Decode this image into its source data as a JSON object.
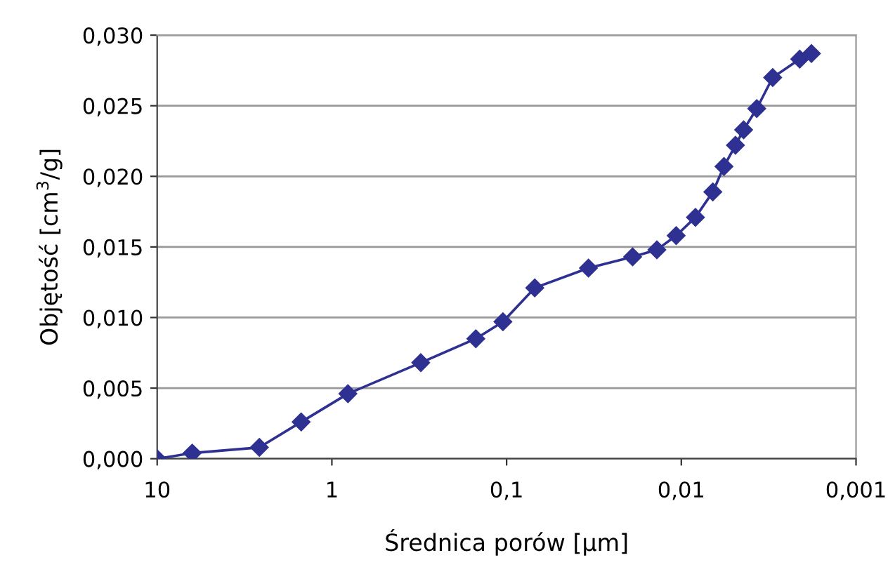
{
  "chart_data": {
    "type": "line",
    "xlabel": "Średnica porów [µm]",
    "ylabel": "Objętość [cm$^{3}$/g]",
    "log": "x",
    "xlim": [
      10,
      0.001
    ],
    "xticks": [
      {
        "value": 10,
        "label": "10"
      },
      {
        "value": 1,
        "label": "1"
      },
      {
        "value": 0.1,
        "label": "0,1"
      },
      {
        "value": 0.01,
        "label": "0,01"
      },
      {
        "value": 0.001,
        "label": "0,001"
      }
    ],
    "ylim": [
      0,
      0.03
    ],
    "yticks": [
      {
        "value": 0,
        "label": "0,000"
      },
      {
        "value": 0.005,
        "label": "0,005"
      },
      {
        "value": 0.01,
        "label": "0,010"
      },
      {
        "value": 0.015,
        "label": "0,015"
      },
      {
        "value": 0.02,
        "label": "0,020"
      },
      {
        "value": 0.025,
        "label": "0,025"
      },
      {
        "value": 0.03,
        "label": "0,030"
      }
    ],
    "grid": "y",
    "marker": "diamond",
    "line_style": "solid",
    "series": [
      {
        "color": "#2e3192",
        "x": [
          10,
          6.3,
          2.6,
          1.5,
          0.81,
          0.31,
          0.15,
          0.105,
          0.069,
          0.034,
          0.019,
          0.0138,
          0.0107,
          0.0083,
          0.0066,
          0.0057,
          0.0049,
          0.0044,
          0.0037,
          0.003,
          0.0021,
          0.0018
        ],
        "values": [
          0.0,
          0.0004,
          0.0008,
          0.0026,
          0.0046,
          0.0068,
          0.0085,
          0.0097,
          0.0121,
          0.0135,
          0.0143,
          0.0148,
          0.0158,
          0.0171,
          0.0189,
          0.0207,
          0.0222,
          0.0233,
          0.0248,
          0.027,
          0.0283,
          0.0287
        ]
      }
    ]
  }
}
